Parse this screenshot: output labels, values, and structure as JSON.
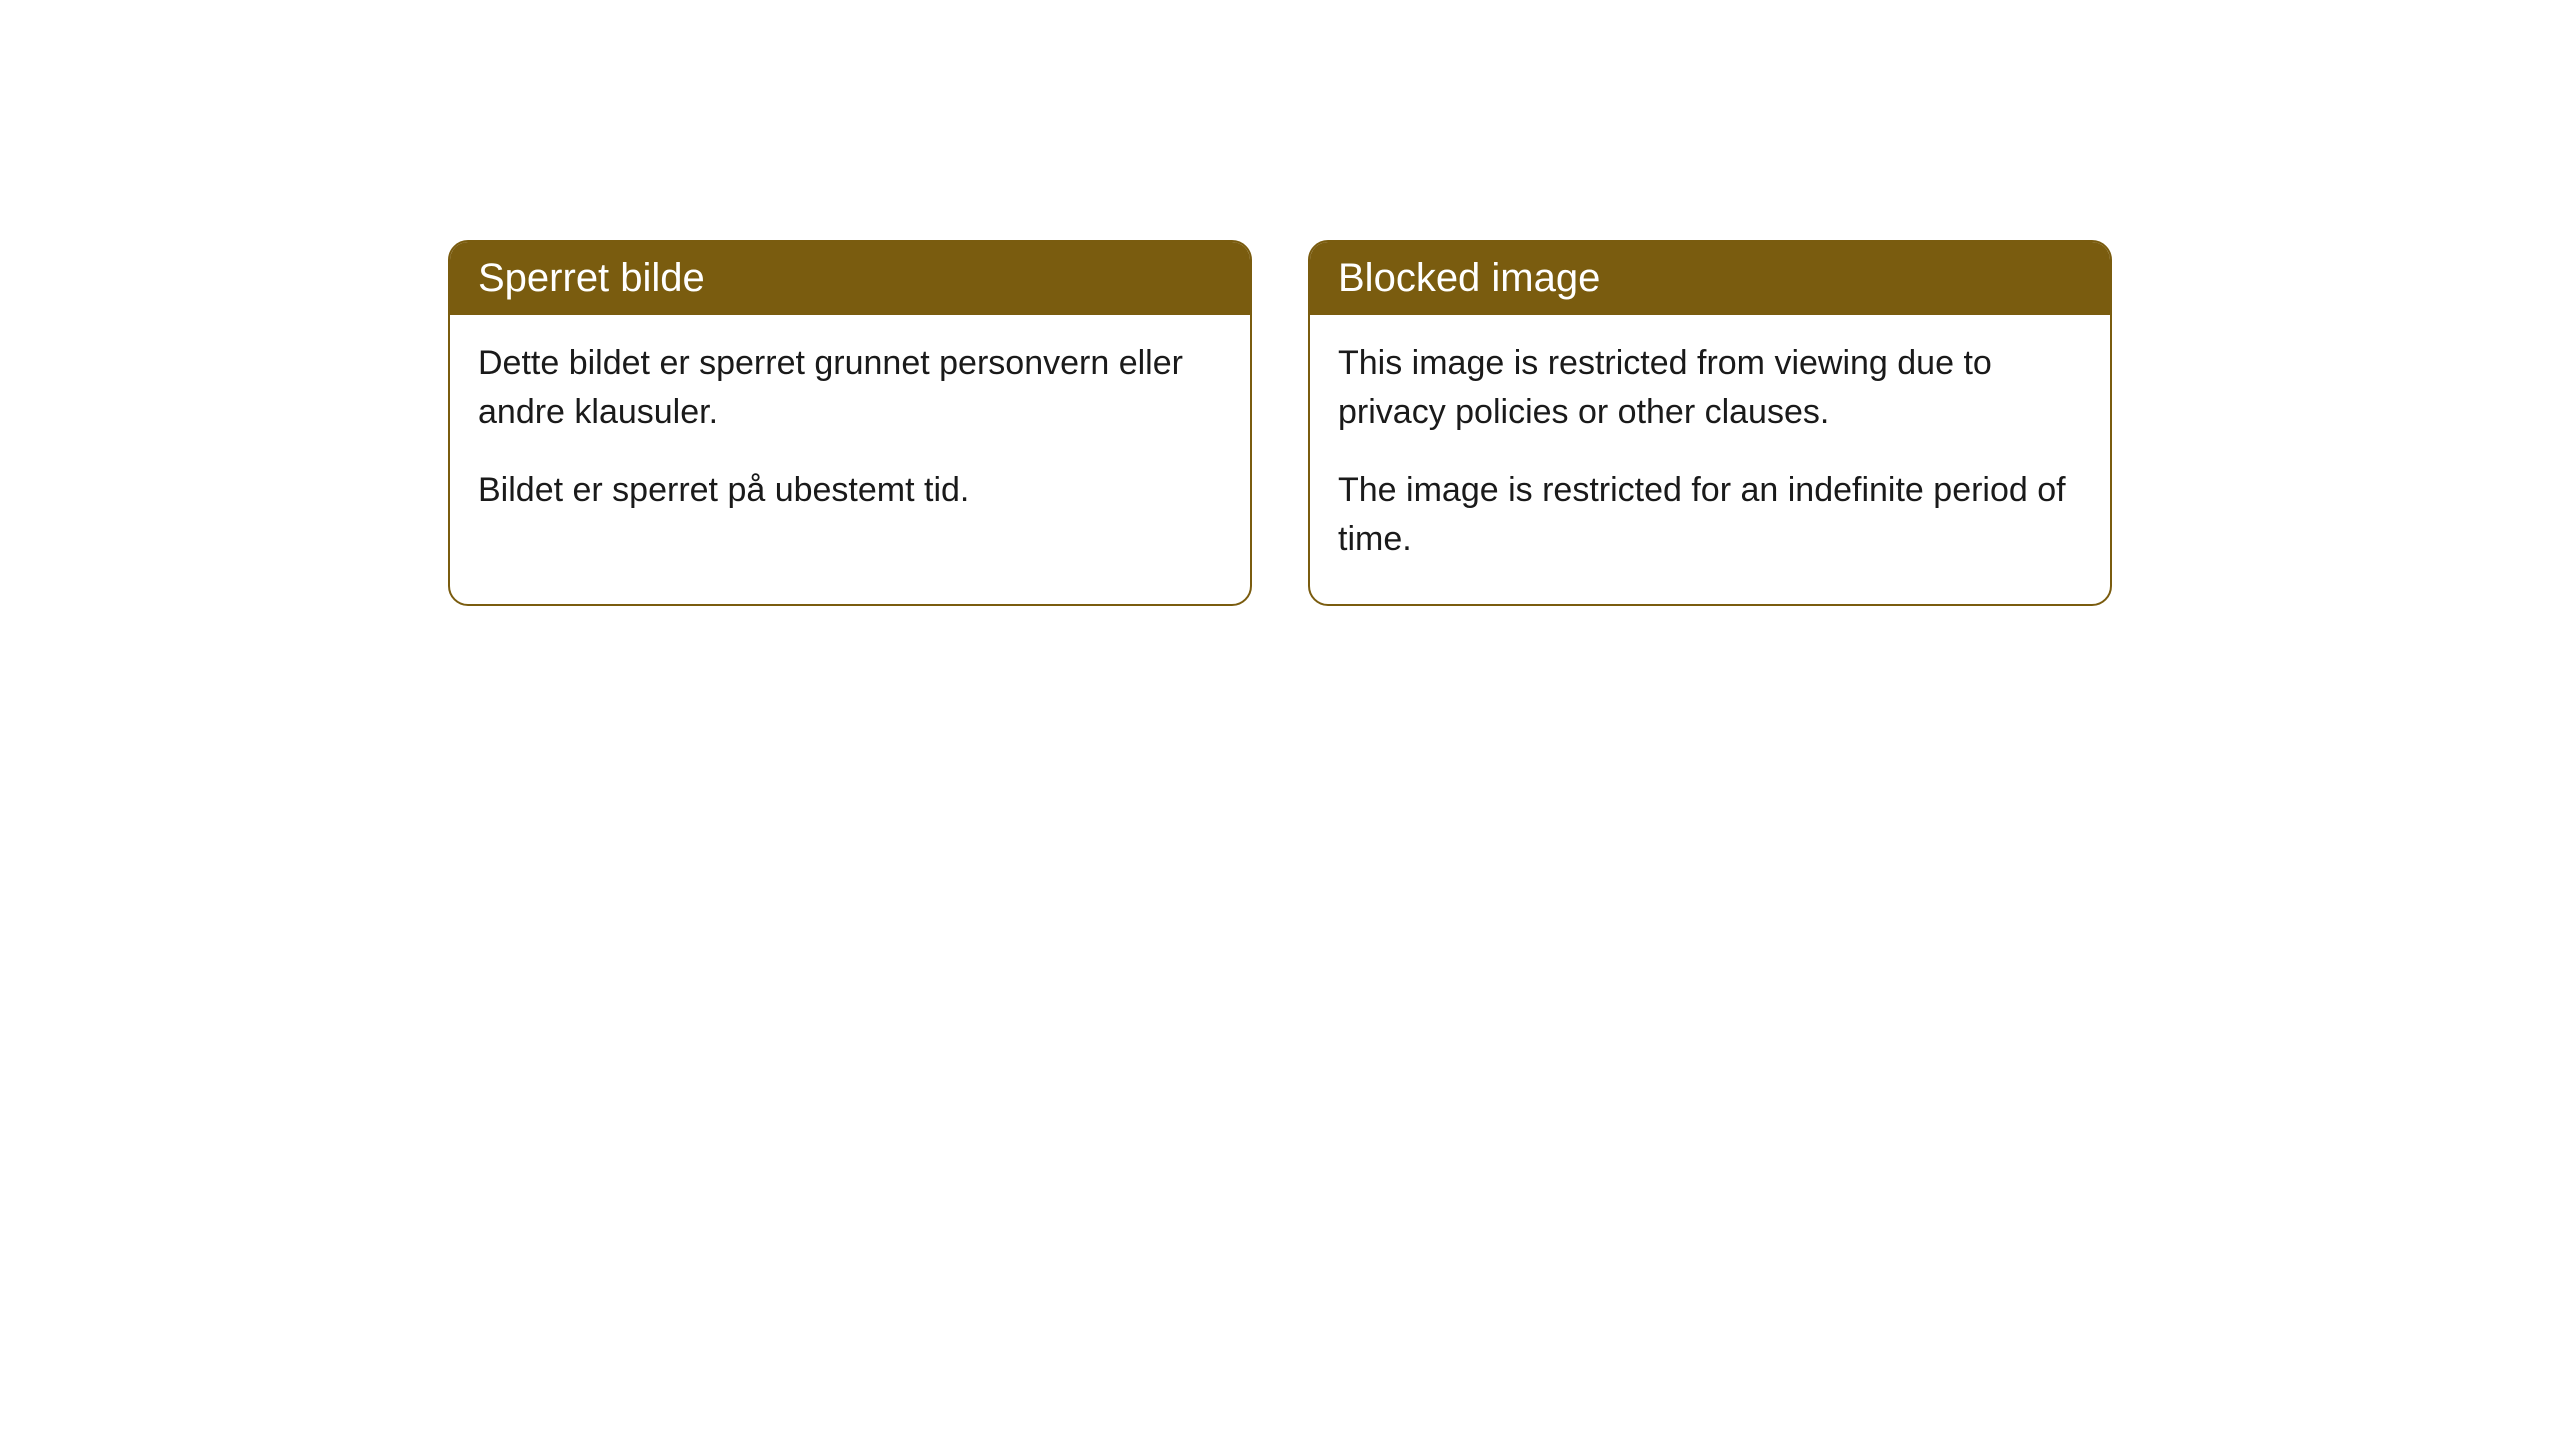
{
  "cards": [
    {
      "title": "Sperret bilde",
      "paragraph1": "Dette bildet er sperret grunnet personvern eller andre klausuler.",
      "paragraph2": "Bildet er sperret på ubestemt tid."
    },
    {
      "title": "Blocked image",
      "paragraph1": "This image is restricted from viewing due to privacy policies or other clauses.",
      "paragraph2": "The image is restricted for an indefinite period of time."
    }
  ],
  "style": {
    "header_bg_color": "#7a5c0f",
    "header_text_color": "#ffffff",
    "border_color": "#7a5c0f",
    "body_text_color": "#1a1a1a",
    "background_color": "#ffffff",
    "border_radius": 20,
    "title_fontsize": 40,
    "body_fontsize": 34
  }
}
